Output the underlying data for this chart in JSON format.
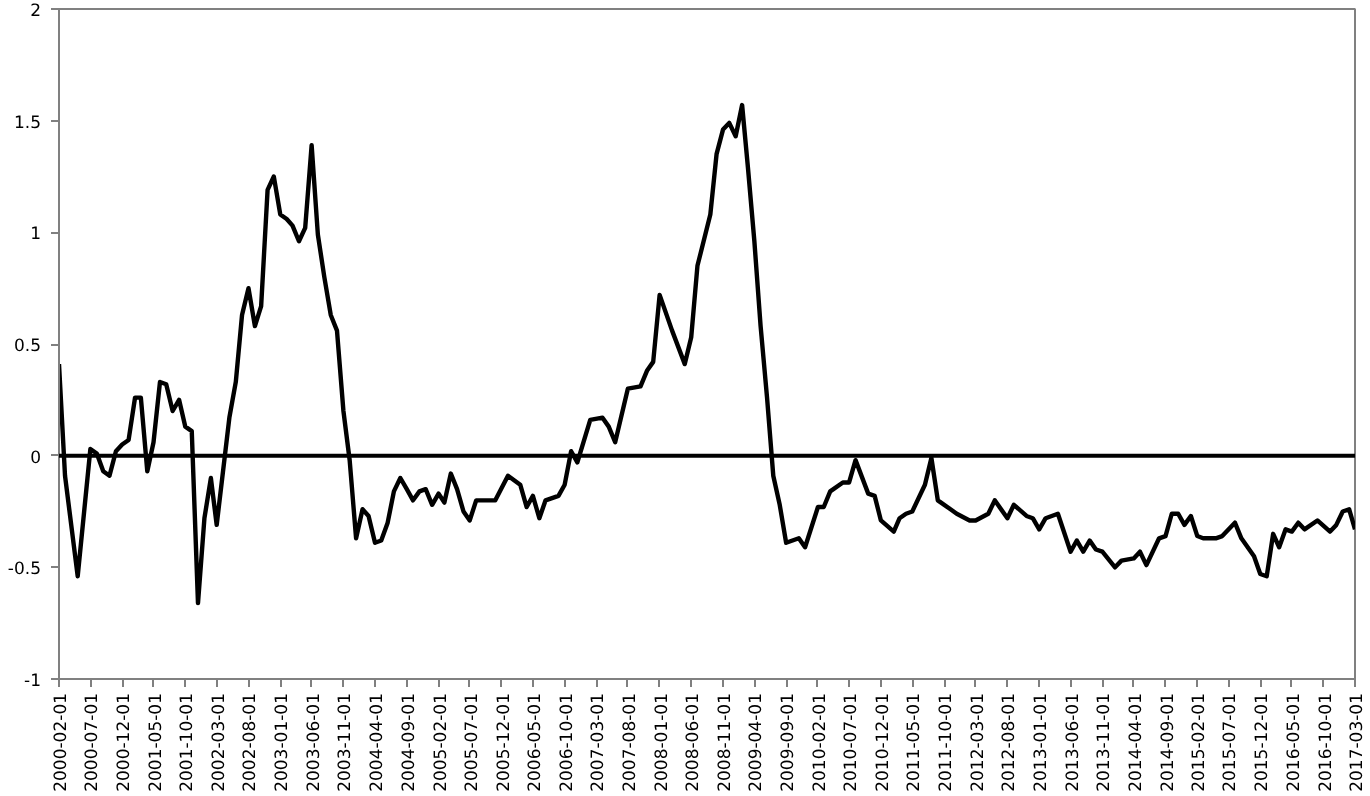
{
  "chart_data": {
    "type": "line",
    "x": [
      "2000-02",
      "2000-03",
      "2000-05",
      "2000-07",
      "2000-08",
      "2000-09",
      "2000-10",
      "2000-11",
      "2000-12",
      "2001-01",
      "2001-02",
      "2001-03",
      "2001-04",
      "2001-05",
      "2001-06",
      "2001-07",
      "2001-08",
      "2001-09",
      "2001-10",
      "2001-11",
      "2001-12",
      "2002-01",
      "2002-02",
      "2002-03",
      "2002-05",
      "2002-06",
      "2002-07",
      "2002-08",
      "2002-09",
      "2002-10",
      "2002-11",
      "2002-12",
      "2003-01",
      "2003-02",
      "2003-03",
      "2003-04",
      "2003-05",
      "2003-06",
      "2003-07",
      "2003-08",
      "2003-09",
      "2003-10",
      "2003-11",
      "2003-12",
      "2004-01",
      "2004-02",
      "2004-03",
      "2004-04",
      "2004-05",
      "2004-06",
      "2004-07",
      "2004-08",
      "2004-09",
      "2004-10",
      "2004-11",
      "2004-12",
      "2005-01",
      "2005-02",
      "2005-03",
      "2005-04",
      "2005-05",
      "2005-06",
      "2005-07",
      "2005-08",
      "2005-11",
      "2006-01",
      "2006-03",
      "2006-04",
      "2006-05",
      "2006-06",
      "2006-07",
      "2006-09",
      "2006-10",
      "2006-11",
      "2006-12",
      "2007-02",
      "2007-04",
      "2007-05",
      "2007-06",
      "2007-08",
      "2007-10",
      "2007-11",
      "2007-12",
      "2008-01",
      "2008-03",
      "2008-05",
      "2008-06",
      "2008-07",
      "2008-09",
      "2008-10",
      "2008-11",
      "2008-12",
      "2009-01",
      "2009-02",
      "2009-03",
      "2009-04",
      "2009-05",
      "2009-06",
      "2009-07",
      "2009-08",
      "2009-09",
      "2009-11",
      "2009-12",
      "2010-02",
      "2010-03",
      "2010-04",
      "2010-06",
      "2010-07",
      "2010-08",
      "2010-10",
      "2010-11",
      "2010-12",
      "2011-02",
      "2011-03",
      "2011-04",
      "2011-05",
      "2011-07",
      "2011-08",
      "2011-09",
      "2011-11",
      "2011-12",
      "2012-02",
      "2012-03",
      "2012-05",
      "2012-06",
      "2012-08",
      "2012-09",
      "2012-11",
      "2012-12",
      "2013-01",
      "2013-02",
      "2013-04",
      "2013-06",
      "2013-07",
      "2013-08",
      "2013-09",
      "2013-10",
      "2013-11",
      "2014-01",
      "2014-02",
      "2014-04",
      "2014-05",
      "2014-06",
      "2014-08",
      "2014-09",
      "2014-10",
      "2014-11",
      "2014-12",
      "2015-01",
      "2015-02",
      "2015-03",
      "2015-05",
      "2015-06",
      "2015-08",
      "2015-09",
      "2015-11",
      "2015-12",
      "2016-01",
      "2016-02",
      "2016-03",
      "2016-04",
      "2016-05",
      "2016-06",
      "2016-07",
      "2016-09",
      "2016-11",
      "2016-12",
      "2017-01",
      "2017-02",
      "2017-03"
    ],
    "series": [
      {
        "color": "#000000",
        "values": [
          0.41,
          -0.09,
          -0.54,
          0.03,
          0.01,
          -0.07,
          -0.09,
          0.02,
          0.05,
          0.07,
          0.26,
          0.26,
          -0.07,
          0.06,
          0.33,
          0.32,
          0.2,
          0.25,
          0.13,
          0.11,
          -0.66,
          -0.28,
          -0.1,
          -0.31,
          0.17,
          0.33,
          0.63,
          0.75,
          0.58,
          0.67,
          1.19,
          1.25,
          1.08,
          1.06,
          1.03,
          0.96,
          1.02,
          1.39,
          0.99,
          0.8,
          0.63,
          0.56,
          0.2,
          -0.02,
          -0.37,
          -0.24,
          -0.27,
          -0.39,
          -0.38,
          -0.3,
          -0.16,
          -0.1,
          -0.15,
          -0.2,
          -0.16,
          -0.15,
          -0.22,
          -0.17,
          -0.21,
          -0.08,
          -0.15,
          -0.25,
          -0.29,
          -0.2,
          -0.2,
          -0.09,
          -0.13,
          -0.23,
          -0.18,
          -0.28,
          -0.2,
          -0.18,
          -0.13,
          0.02,
          -0.03,
          0.16,
          0.17,
          0.13,
          0.06,
          0.3,
          0.31,
          0.38,
          0.42,
          0.72,
          0.56,
          0.41,
          0.53,
          0.85,
          1.08,
          1.35,
          1.46,
          1.49,
          1.43,
          1.57,
          1.29,
          0.96,
          0.58,
          0.26,
          -0.09,
          -0.22,
          -0.39,
          -0.37,
          -0.41,
          -0.23,
          -0.23,
          -0.16,
          -0.12,
          -0.12,
          -0.02,
          -0.17,
          -0.18,
          -0.29,
          -0.34,
          -0.28,
          -0.26,
          -0.25,
          -0.13,
          -0.01,
          -0.2,
          -0.24,
          -0.26,
          -0.29,
          -0.29,
          -0.26,
          -0.2,
          -0.28,
          -0.22,
          -0.27,
          -0.28,
          -0.33,
          -0.28,
          -0.26,
          -0.43,
          -0.38,
          -0.43,
          -0.38,
          -0.42,
          -0.43,
          -0.5,
          -0.47,
          -0.46,
          -0.43,
          -0.49,
          -0.37,
          -0.36,
          -0.26,
          -0.26,
          -0.31,
          -0.27,
          -0.36,
          -0.37,
          -0.37,
          -0.36,
          -0.3,
          -0.37,
          -0.45,
          -0.53,
          -0.54,
          -0.35,
          -0.41,
          -0.33,
          -0.34,
          -0.3,
          -0.33,
          -0.29,
          -0.34,
          -0.31,
          -0.25,
          -0.24,
          -0.33
        ]
      }
    ],
    "xlim": [
      "2000-02",
      "2017-03"
    ],
    "xticks": [
      {
        "value": "2000-02",
        "label": "2000-02-01"
      },
      {
        "value": "2000-07",
        "label": "2000-07-01"
      },
      {
        "value": "2000-12",
        "label": "2000-12-01"
      },
      {
        "value": "2001-05",
        "label": "2001-05-01"
      },
      {
        "value": "2001-10",
        "label": "2001-10-01"
      },
      {
        "value": "2002-03",
        "label": "2002-03-01"
      },
      {
        "value": "2002-08",
        "label": "2002-08-01"
      },
      {
        "value": "2003-01",
        "label": "2003-01-01"
      },
      {
        "value": "2003-06",
        "label": "2003-06-01"
      },
      {
        "value": "2003-11",
        "label": "2003-11-01"
      },
      {
        "value": "2004-04",
        "label": "2004-04-01"
      },
      {
        "value": "2004-09",
        "label": "2004-09-01"
      },
      {
        "value": "2005-02",
        "label": "2005-02-01"
      },
      {
        "value": "2005-07",
        "label": "2005-07-01"
      },
      {
        "value": "2005-12",
        "label": "2005-12-01"
      },
      {
        "value": "2006-05",
        "label": "2006-05-01"
      },
      {
        "value": "2006-10",
        "label": "2006-10-01"
      },
      {
        "value": "2007-03",
        "label": "2007-03-01"
      },
      {
        "value": "2007-08",
        "label": "2007-08-01"
      },
      {
        "value": "2008-01",
        "label": "2008-01-01"
      },
      {
        "value": "2008-06",
        "label": "2008-06-01"
      },
      {
        "value": "2008-11",
        "label": "2008-11-01"
      },
      {
        "value": "2009-04",
        "label": "2009-04-01"
      },
      {
        "value": "2009-09",
        "label": "2009-09-01"
      },
      {
        "value": "2010-02",
        "label": "2010-02-01"
      },
      {
        "value": "2010-07",
        "label": "2010-07-01"
      },
      {
        "value": "2010-12",
        "label": "2010-12-01"
      },
      {
        "value": "2011-05",
        "label": "2011-05-01"
      },
      {
        "value": "2011-10",
        "label": "2011-10-01"
      },
      {
        "value": "2012-03",
        "label": "2012-03-01"
      },
      {
        "value": "2012-08",
        "label": "2012-08-01"
      },
      {
        "value": "2013-01",
        "label": "2013-01-01"
      },
      {
        "value": "2013-06",
        "label": "2013-06-01"
      },
      {
        "value": "2013-11",
        "label": "2013-11-01"
      },
      {
        "value": "2014-04",
        "label": "2014-04-01"
      },
      {
        "value": "2014-09",
        "label": "2014-09-01"
      },
      {
        "value": "2015-02",
        "label": "2015-02-01"
      },
      {
        "value": "2015-07",
        "label": "2015-07-01"
      },
      {
        "value": "2015-12",
        "label": "2015-12-01"
      },
      {
        "value": "2016-05",
        "label": "2016-05-01"
      },
      {
        "value": "2016-10",
        "label": "2016-10-01"
      },
      {
        "value": "2017-03",
        "label": "2017-03-01"
      }
    ],
    "ylim": [
      -1,
      2
    ],
    "yticks": [
      -1,
      -0.5,
      0,
      0.5,
      1,
      1.5,
      2
    ],
    "ref_lines": [
      {
        "axis": "y",
        "value": 0,
        "color": "#000000"
      }
    ]
  }
}
